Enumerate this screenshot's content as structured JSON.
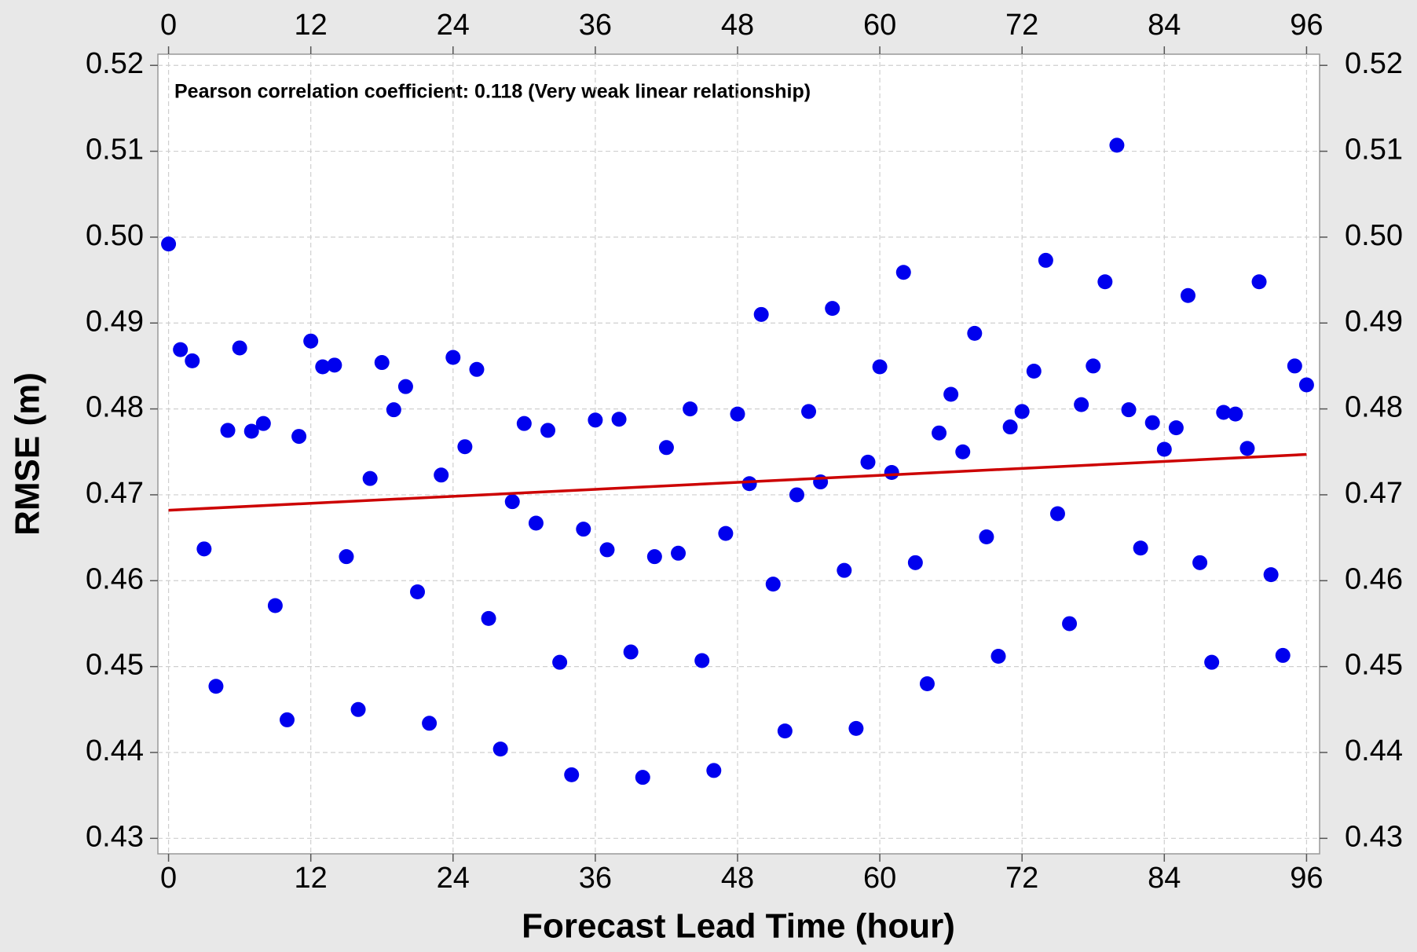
{
  "chart_data": {
    "type": "scatter",
    "annotation": "Pearson correlation coefficient:  0.118 (Very weak linear relationship)",
    "x_label": "Forecast Lead Time (hour)",
    "y_label": "RMSE (m)",
    "series": [
      {
        "color": "#0000ee",
        "x": [
          0,
          1,
          2,
          3,
          4,
          5,
          6,
          7,
          8,
          9,
          10,
          11,
          12,
          13,
          14,
          15,
          16,
          17,
          18,
          19,
          20,
          21,
          22,
          23,
          24,
          25,
          26,
          27,
          28,
          29,
          30,
          31,
          32,
          33,
          34,
          35,
          36,
          37,
          38,
          39,
          40,
          41,
          42,
          43,
          44,
          45,
          46,
          47,
          48,
          49,
          50,
          51,
          52,
          53,
          54,
          55,
          56,
          57,
          58,
          59,
          60,
          61,
          62,
          63,
          64,
          65,
          66,
          67,
          68,
          69,
          70,
          71,
          72,
          73,
          74,
          75,
          76,
          77,
          78,
          79,
          80,
          81,
          82,
          83,
          84,
          85,
          86,
          87,
          88,
          89,
          90,
          91,
          92,
          93,
          94,
          95,
          96
        ],
        "values": [
          0.4992,
          0.4869,
          0.4856,
          0.4637,
          0.4477,
          0.4775,
          0.4871,
          0.4774,
          0.4783,
          0.4571,
          0.4438,
          0.4768,
          0.4879,
          0.4849,
          0.4851,
          0.4628,
          0.445,
          0.4719,
          0.4854,
          0.4799,
          0.4826,
          0.4587,
          0.4434,
          0.4723,
          0.486,
          0.4756,
          0.4846,
          0.4556,
          0.4404,
          0.4692,
          0.4783,
          0.4667,
          0.4775,
          0.4505,
          0.4374,
          0.466,
          0.4787,
          0.4636,
          0.4788,
          0.4517,
          0.4371,
          0.4628,
          0.4755,
          0.4632,
          0.48,
          0.4507,
          0.4379,
          0.4655,
          0.4794,
          0.4713,
          0.491,
          0.4596,
          0.4425,
          0.47,
          0.4797,
          0.4715,
          0.4917,
          0.4612,
          0.4428,
          0.4738,
          0.4849,
          0.4726,
          0.4959,
          0.4621,
          0.448,
          0.4772,
          0.4817,
          0.475,
          0.4888,
          0.4651,
          0.4512,
          0.4779,
          0.4797,
          0.4844,
          0.4973,
          0.4678,
          0.455,
          0.4805,
          0.485,
          0.4948,
          0.5107,
          0.4799,
          0.4638,
          0.4784,
          0.4753,
          0.4778,
          0.4932,
          0.4621,
          0.4505,
          0.4796,
          0.4794,
          0.4754,
          0.4948,
          0.4607,
          0.4513,
          0.485,
          0.4828
        ]
      },
      {
        "color": "#cc0000",
        "line": true,
        "x": [
          0,
          96
        ],
        "values": [
          0.4682,
          0.4747
        ]
      }
    ],
    "xlim": [
      -0.9,
      97.1
    ],
    "xticks": [
      0,
      12,
      24,
      36,
      48,
      60,
      72,
      84,
      96
    ],
    "ylim": [
      0.4282,
      0.5213
    ],
    "yticks": [
      0.43,
      0.44,
      0.45,
      0.46,
      0.47,
      0.48,
      0.49,
      {
        "value": 0.5,
        "label": "0.50"
      },
      0.51,
      0.52
    ],
    "grid": true
  }
}
